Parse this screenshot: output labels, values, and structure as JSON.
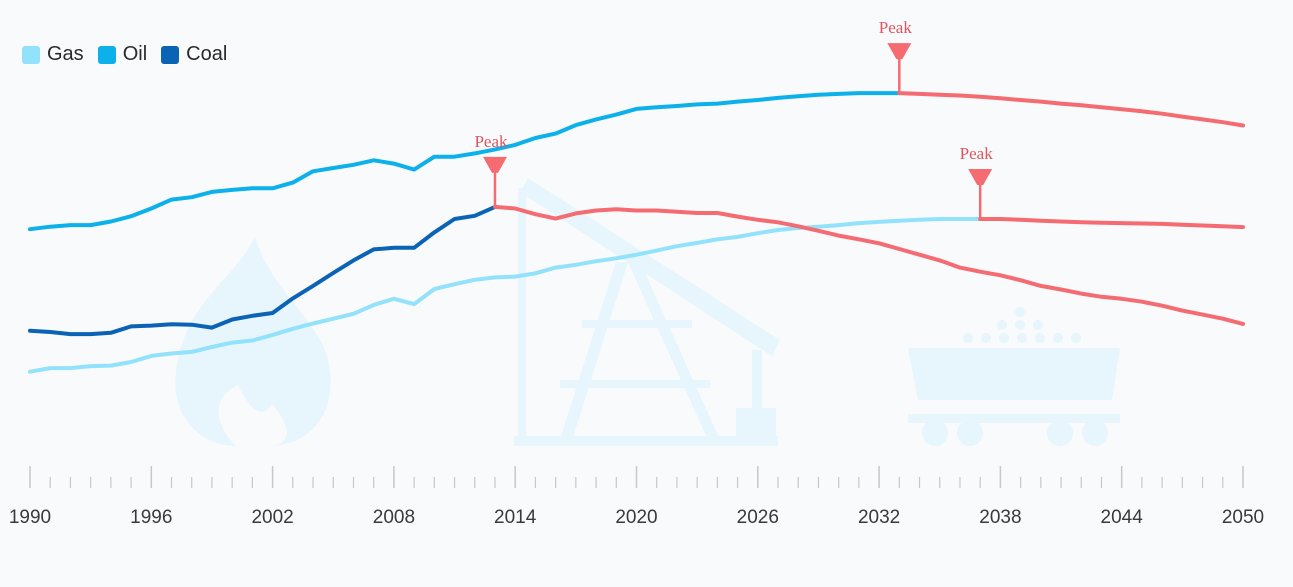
{
  "legend": [
    {
      "label": "Gas",
      "color": "#93e2fb"
    },
    {
      "label": "Oil",
      "color": "#0cb0ea"
    },
    {
      "label": "Coal",
      "color": "#0b63b5"
    }
  ],
  "peak_color": "#f56b72",
  "peak_label": "Peak",
  "background_icons": [
    "gas-flame-icon",
    "oil-pumpjack-icon",
    "coal-cart-icon"
  ],
  "chart_data": {
    "type": "line",
    "title": "",
    "xlabel": "",
    "ylabel": "",
    "xlim": [
      1990,
      2050
    ],
    "ylim": [
      0,
      100
    ],
    "x_ticks": [
      "1990",
      "1996",
      "2002",
      "2008",
      "2014",
      "2020",
      "2026",
      "2032",
      "2038",
      "2044",
      "2050"
    ],
    "grid": false,
    "legend_position": "top-left",
    "series": [
      {
        "name": "Gas",
        "peak_year": 2037,
        "x": [
          1990,
          1991,
          1992,
          1993,
          1994,
          1995,
          1996,
          1997,
          1998,
          1999,
          2000,
          2001,
          2002,
          2003,
          2004,
          2005,
          2006,
          2007,
          2008,
          2009,
          2010,
          2011,
          2012,
          2013,
          2014,
          2015,
          2016,
          2017,
          2018,
          2019,
          2020,
          2021,
          2022,
          2023,
          2024,
          2025,
          2026,
          2027,
          2028,
          2029,
          2030,
          2031,
          2032,
          2033,
          2034,
          2035,
          2036,
          2037,
          2038,
          2039,
          2040,
          2041,
          2042,
          2043,
          2044,
          2045,
          2046,
          2047,
          2048,
          2049,
          2050
        ],
        "y": [
          25.5,
          26.4,
          26.4,
          26.9,
          27.0,
          27.9,
          29.4,
          30.0,
          30.4,
          31.6,
          32.7,
          33.2,
          34.6,
          36.1,
          37.4,
          38.6,
          39.8,
          42.0,
          43.5,
          42.2,
          45.9,
          47.1,
          48.2,
          48.8,
          49.0,
          49.8,
          51.2,
          51.9,
          52.8,
          53.5,
          54.4,
          55.4,
          56.5,
          57.3,
          58.2,
          58.8,
          59.7,
          60.5,
          61.0,
          61.3,
          61.7,
          62.2,
          62.5,
          62.8,
          63.0,
          63.2,
          63.2,
          63.2,
          63.2,
          63.0,
          62.8,
          62.6,
          62.4,
          62.3,
          62.2,
          62.1,
          62.0,
          61.8,
          61.6,
          61.4,
          61.2
        ]
      },
      {
        "name": "Oil",
        "peak_year": 2033,
        "x": [
          1990,
          1991,
          1992,
          1993,
          1994,
          1995,
          1996,
          1997,
          1998,
          1999,
          2000,
          2001,
          2002,
          2003,
          2004,
          2005,
          2006,
          2007,
          2008,
          2009,
          2010,
          2011,
          2012,
          2013,
          2014,
          2015,
          2016,
          2017,
          2018,
          2019,
          2020,
          2021,
          2022,
          2023,
          2024,
          2025,
          2026,
          2027,
          2028,
          2029,
          2030,
          2031,
          2032,
          2033,
          2034,
          2035,
          2036,
          2037,
          2038,
          2039,
          2040,
          2041,
          2042,
          2043,
          2044,
          2045,
          2046,
          2047,
          2048,
          2049,
          2050
        ],
        "y": [
          60.7,
          61.3,
          61.7,
          61.7,
          62.6,
          63.9,
          65.8,
          68.0,
          68.6,
          69.9,
          70.4,
          70.8,
          70.8,
          72.2,
          75.0,
          75.8,
          76.6,
          77.7,
          76.9,
          75.4,
          78.6,
          78.6,
          79.4,
          80.4,
          81.5,
          83.2,
          84.3,
          86.4,
          87.8,
          89.0,
          90.4,
          90.8,
          91.1,
          91.5,
          91.7,
          92.2,
          92.6,
          93.1,
          93.5,
          93.9,
          94.1,
          94.3,
          94.3,
          94.3,
          94.1,
          93.9,
          93.7,
          93.4,
          93.0,
          92.6,
          92.2,
          91.7,
          91.3,
          90.8,
          90.3,
          89.8,
          89.2,
          88.5,
          87.8,
          87.1,
          86.3
        ]
      },
      {
        "name": "Coal",
        "peak_year": 2013,
        "x": [
          1990,
          1991,
          1992,
          1993,
          1994,
          1995,
          1996,
          1997,
          1998,
          1999,
          2000,
          2001,
          2002,
          2003,
          2004,
          2005,
          2006,
          2007,
          2008,
          2009,
          2010,
          2011,
          2012,
          2013,
          2014,
          2015,
          2016,
          2017,
          2018,
          2019,
          2020,
          2021,
          2022,
          2023,
          2024,
          2025,
          2026,
          2027,
          2028,
          2029,
          2030,
          2031,
          2032,
          2033,
          2034,
          2035,
          2036,
          2037,
          2038,
          2039,
          2040,
          2041,
          2042,
          2043,
          2044,
          2045,
          2046,
          2047,
          2048,
          2049,
          2050
        ],
        "y": [
          35.6,
          35.3,
          34.8,
          34.8,
          35.1,
          36.7,
          36.9,
          37.2,
          37.1,
          36.4,
          38.4,
          39.3,
          40.0,
          43.6,
          46.7,
          49.9,
          53.0,
          55.7,
          56.1,
          56.1,
          59.9,
          63.2,
          64.0,
          66.2,
          65.8,
          64.4,
          63.3,
          64.6,
          65.3,
          65.6,
          65.3,
          65.3,
          65.0,
          64.7,
          64.7,
          63.8,
          63.0,
          62.4,
          61.4,
          60.3,
          59.1,
          58.2,
          57.2,
          55.8,
          54.4,
          53.0,
          51.2,
          50.2,
          49.3,
          48.1,
          46.7,
          45.8,
          44.8,
          44.0,
          43.5,
          42.8,
          41.8,
          40.6,
          39.6,
          38.6,
          37.3
        ]
      }
    ]
  }
}
